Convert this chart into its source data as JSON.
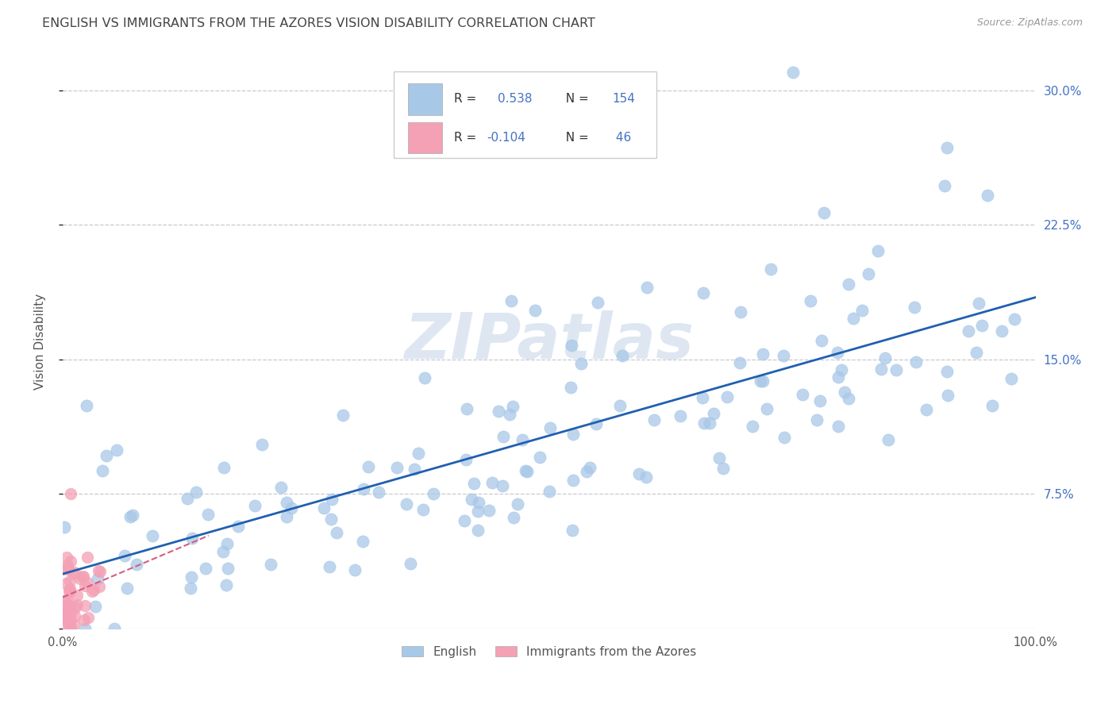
{
  "title": "ENGLISH VS IMMIGRANTS FROM THE AZORES VISION DISABILITY CORRELATION CHART",
  "source": "Source: ZipAtlas.com",
  "ylabel": "Vision Disability",
  "english_color": "#a8c8e8",
  "azores_color": "#f4a0b5",
  "english_line_color": "#2060b0",
  "azores_line_color": "#d06080",
  "R_english": 0.538,
  "N_english": 154,
  "R_azores": -0.104,
  "N_azores": 46,
  "xlim": [
    0,
    1.0
  ],
  "ylim": [
    0,
    0.32
  ],
  "xticks": [
    0.0,
    0.25,
    0.5,
    0.75,
    1.0
  ],
  "xtick_labels": [
    "0.0%",
    "",
    "",
    "",
    "100.0%"
  ],
  "yticks": [
    0.0,
    0.075,
    0.15,
    0.225,
    0.3
  ],
  "ytick_labels": [
    "",
    "7.5%",
    "15.0%",
    "22.5%",
    "30.0%"
  ],
  "background_color": "#ffffff",
  "watermark": "ZIPatlas",
  "title_fontsize": 11.5,
  "label_fontsize": 11
}
